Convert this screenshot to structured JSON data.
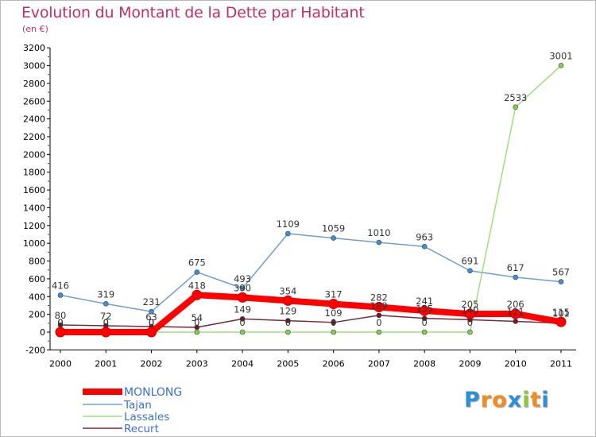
{
  "header": {
    "title": "Evolution du Montant de la Dette par Habitant",
    "unit": "(en €)"
  },
  "logo": {
    "letters": [
      "P",
      "r",
      "o",
      "x",
      "i",
      "t",
      "i"
    ],
    "colors": [
      "#2f8fd6",
      "#f28c1e",
      "#f28c1e",
      "#2f8fd6",
      "#8cc63f",
      "#f28c1e",
      "#2f8fd6"
    ]
  },
  "chart_data": {
    "type": "line",
    "title": "Evolution du Montant de la Dette par Habitant",
    "ylabel": "(en €)",
    "xlabel": "",
    "x": [
      "2000",
      "2001",
      "2002",
      "2003",
      "2004",
      "2005",
      "2006",
      "2007",
      "2008",
      "2009",
      "2010",
      "2011"
    ],
    "ylim": [
      -200,
      3200
    ],
    "yticks": [
      "-200",
      "0",
      "200",
      "400",
      "600",
      "800",
      "1000",
      "1200",
      "1400",
      "1600",
      "1800",
      "2000",
      "2200",
      "2400",
      "2600",
      "2800",
      "3000",
      "3200"
    ],
    "grid": false,
    "legend_position": "bottom-left",
    "series": [
      {
        "name": "MONLONG",
        "values": [
          0,
          0,
          0,
          418,
          390,
          354,
          317,
          282,
          241,
          205,
          206,
          115
        ],
        "labels": [
          "0",
          "0",
          "0",
          "418",
          "390",
          "354",
          "317",
          "282",
          "241",
          "205",
          "206",
          "115"
        ],
        "color": "#ff0000",
        "marker_fill": "#ff0000",
        "bold": true
      },
      {
        "name": "Tajan",
        "values": [
          416,
          319,
          231,
          675,
          493,
          1109,
          1059,
          1010,
          963,
          691,
          617,
          567
        ],
        "labels": [
          "416",
          "319",
          "231",
          "675",
          "493",
          "1109",
          "1059",
          "1010",
          "963",
          "691",
          "617",
          "567"
        ],
        "color": "#6fa0cd",
        "marker_fill": "#3f8fd8",
        "bold": false
      },
      {
        "name": "Lassales",
        "values": [
          0,
          0,
          0,
          0,
          0,
          0,
          0,
          0,
          0,
          0,
          2533,
          3001
        ],
        "labels": [
          "0",
          "0",
          "0",
          "0",
          "0",
          "0",
          "0",
          "0",
          "0",
          "0",
          "2533",
          "3001"
        ],
        "color": "#9fe07a",
        "marker_fill": "#7ed34a",
        "bold": false
      },
      {
        "name": "Recurt",
        "values": [
          80,
          72,
          63,
          54,
          149,
          129,
          109,
          189,
          155,
          140,
          121,
          101
        ],
        "labels": [
          "80",
          "72",
          "63",
          "54",
          "149",
          "129",
          "109",
          "189",
          "155",
          "140",
          "121",
          "101"
        ],
        "color": "#7a2a3a",
        "marker_fill": "#6a1a2a",
        "bold": false
      }
    ]
  }
}
